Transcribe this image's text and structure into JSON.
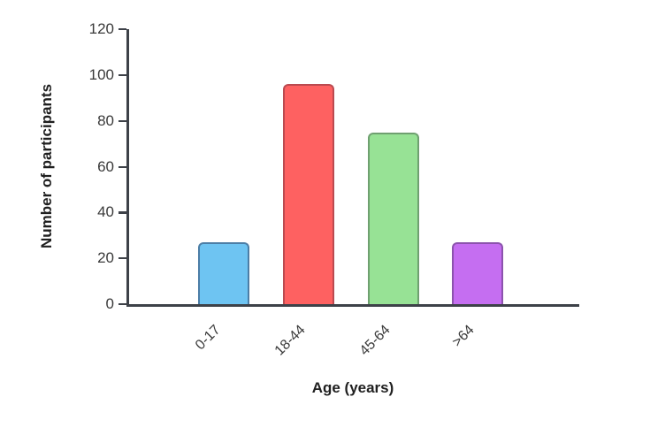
{
  "chart_data": {
    "type": "bar",
    "title": "",
    "categories": [
      "0-17",
      "18-44",
      "45-64",
      ">64"
    ],
    "values": [
      27,
      96,
      75,
      27
    ],
    "xlabel": "Age (years)",
    "ylabel": "Number of participants",
    "ylim": [
      0,
      120
    ],
    "yticks": [
      0,
      20,
      40,
      60,
      80,
      100,
      120
    ],
    "grid": false,
    "legend": "none",
    "bar_fill_colors": [
      "#6ec4f2",
      "#fe6161",
      "#97e295",
      "#c56ef1"
    ],
    "bar_border_colors": [
      "#4c7ea6",
      "#bb4a50",
      "#6fa070",
      "#8c53ad"
    ],
    "axis_color": "#3d4148",
    "tick_label_color": "#3a3a3a",
    "axis_title_color": "#1f1f1f"
  }
}
